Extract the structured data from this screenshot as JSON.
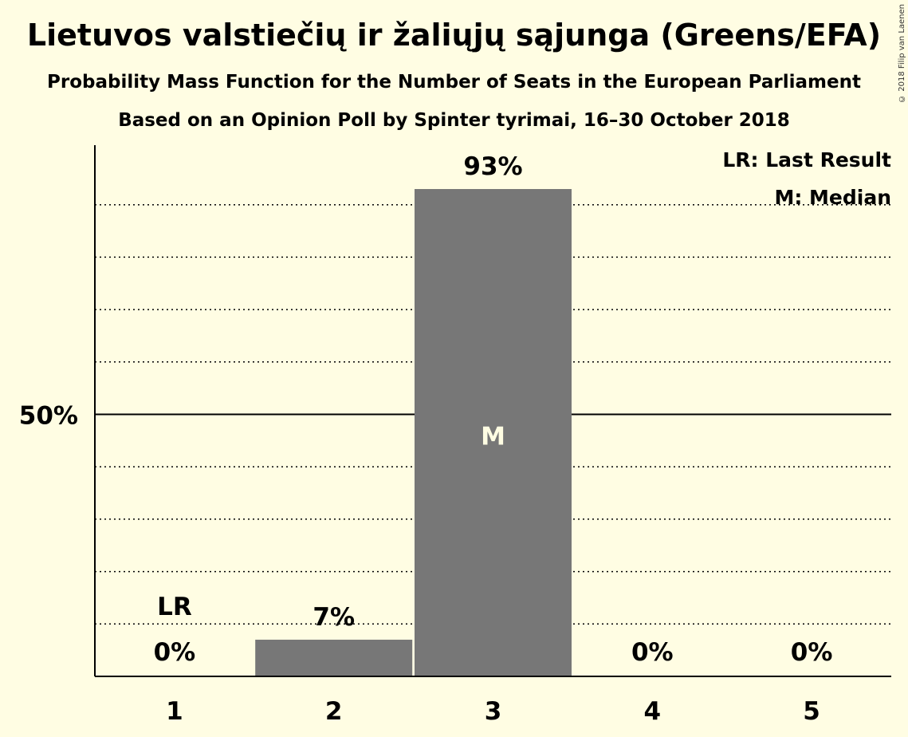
{
  "title": "Lietuvos valstiečių ir žaliųjų sąjunga (Greens/EFA)",
  "subtitle": "Probability Mass Function for the Number of Seats in the European Parliament",
  "source": "Based on an Opinion Poll by Spinter tyrimai, 16–30 October 2018",
  "copyright": "© 2018 Filip van Laenen",
  "legend": {
    "last_result": "LR: Last Result",
    "median": "M: Median"
  },
  "chart_data": {
    "type": "bar",
    "categories": [
      "1",
      "2",
      "3",
      "4",
      "5"
    ],
    "values": [
      0,
      7,
      93,
      0,
      0
    ],
    "value_labels": [
      "0%",
      "7%",
      "93%",
      "0%",
      "0%"
    ],
    "y_tick_label": "50%",
    "y_tick_value": 50,
    "ylim": [
      0,
      100
    ],
    "gridlines_every": 10,
    "last_result_index": 0,
    "last_result_marker": "LR",
    "median_index": 2,
    "median_marker": "M",
    "bar_color": "#777777",
    "legend_placement": "top-right"
  }
}
